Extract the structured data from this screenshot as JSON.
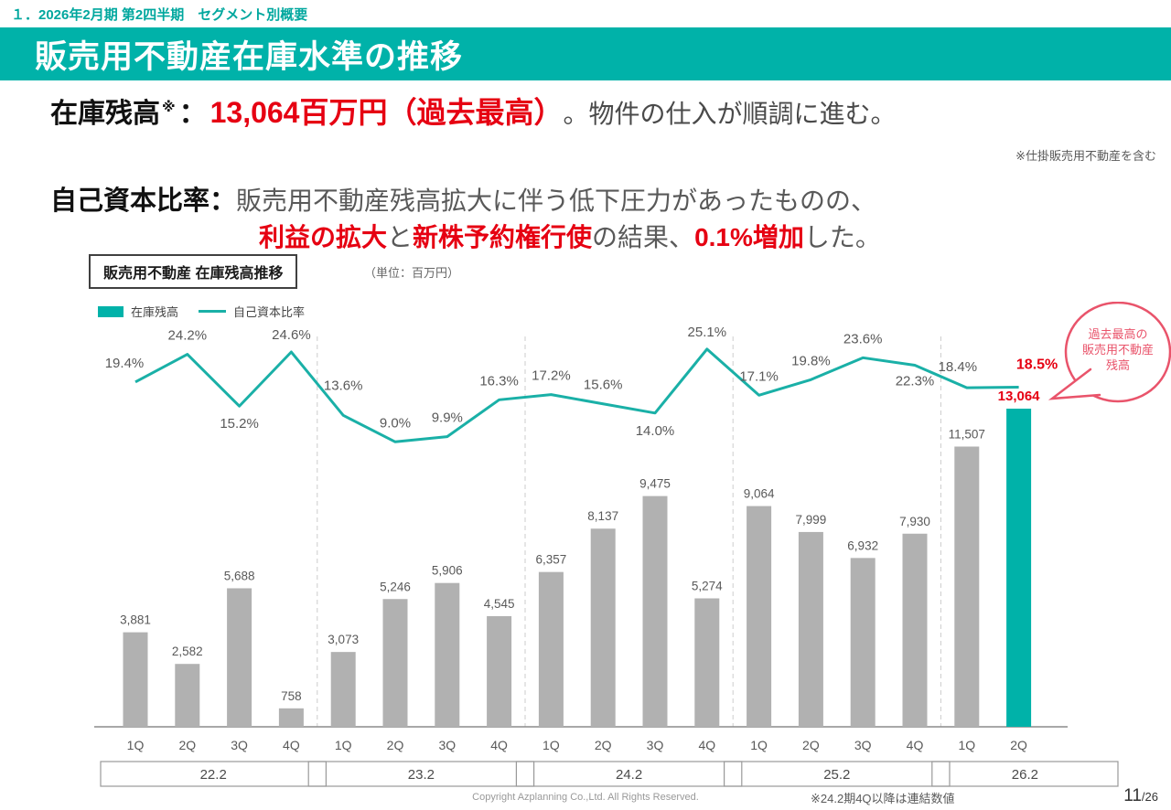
{
  "page": {
    "breadcrumb": "１．2026年2月期 第2四半期　セグメント別概要",
    "title": "販売用不動産在庫水準の推移",
    "copyright": "Copyright Azplanning Co.,Ltd. All Rights Reserved.",
    "footnote_right": "※24.2期4Q以降は連結数値",
    "page_number": "11",
    "page_total": "/26"
  },
  "highlights": {
    "line1_label": "在庫残高",
    "line1_mark": "※",
    "line1_colon": "：",
    "line1_value": "13,064百万円（過去最高）",
    "line1_rest": "。物件の仕入が順調に進む。",
    "line1_note": "※仕掛販売用不動産を含む",
    "line2_label": "自己資本比率：",
    "line2_text1": "販売用不動産残高拡大に伴う低下圧力があったものの、",
    "line2_red1": "利益の拡大",
    "line2_mid1": "と",
    "line2_red2": "新株予約権行使",
    "line2_mid2": "の結果、",
    "line2_red3": "0.1%増加",
    "line2_tail": "した。"
  },
  "chart": {
    "box_title": "販売用不動産 在庫残高推移",
    "unit_label": "（単位：百万円）",
    "legend": [
      {
        "label": "在庫残高",
        "type": "bar"
      },
      {
        "label": "自己資本比率",
        "type": "line"
      }
    ],
    "callout": {
      "lines": [
        "過去最高の",
        "販売用不動産",
        "残高"
      ]
    }
  },
  "colors": {
    "accent": "#00B2A9",
    "bar_gray": "#B1B1B1",
    "line": "#1AB0A7",
    "red": "#E60012",
    "callout_red": "#E9546B",
    "text_gray": "#595959"
  },
  "chart_data": {
    "type": "bar",
    "title": "販売用不動産 在庫残高推移",
    "unit": "百万円",
    "categories": [
      "1Q",
      "2Q",
      "3Q",
      "4Q",
      "1Q",
      "2Q",
      "3Q",
      "4Q",
      "1Q",
      "2Q",
      "3Q",
      "4Q",
      "1Q",
      "2Q",
      "3Q",
      "4Q",
      "1Q",
      "2Q"
    ],
    "groups": [
      {
        "label": "22.2",
        "count": 4
      },
      {
        "label": "23.2",
        "count": 4
      },
      {
        "label": "24.2",
        "count": 4
      },
      {
        "label": "25.2",
        "count": 4
      },
      {
        "label": "26.2",
        "count": 2
      }
    ],
    "series": [
      {
        "name": "在庫残高",
        "type": "bar",
        "values": [
          3881,
          2582,
          5688,
          758,
          3073,
          5246,
          5906,
          4545,
          6357,
          8137,
          9475,
          5274,
          9064,
          7999,
          6932,
          7930,
          11507,
          13064
        ]
      },
      {
        "name": "自己資本比率",
        "type": "line",
        "unit": "%",
        "values": [
          19.4,
          24.2,
          15.2,
          24.6,
          13.6,
          9.0,
          9.9,
          16.3,
          17.2,
          15.6,
          14.0,
          25.1,
          17.1,
          19.8,
          23.6,
          22.3,
          18.4,
          18.5
        ]
      }
    ],
    "highlight_index": 17,
    "ylim": [
      0,
      14000
    ],
    "legend_position": "top-left",
    "grid": false
  }
}
